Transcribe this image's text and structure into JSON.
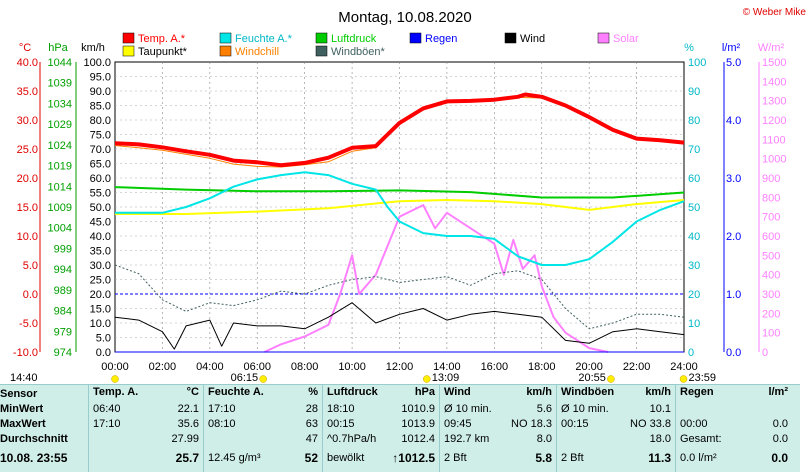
{
  "title": "Montag, 10.08.2020",
  "copyright": "© Weber Mike",
  "colors": {
    "temp": "#ff0000",
    "humidity": "#00e5e5",
    "pressure": "#00cc00",
    "rain": "#0000ff",
    "wind": "#000000",
    "solar": "#ff80ff",
    "dewpoint": "#ffff00",
    "windchill": "#ff8000",
    "gust": "#406060"
  },
  "legend": [
    {
      "label": "Temp. A.*",
      "color": "#ff0000"
    },
    {
      "label": "Feuchte A.*",
      "color": "#00e5e5"
    },
    {
      "label": "Luftdruck",
      "color": "#00cc00"
    },
    {
      "label": "Regen",
      "color": "#0000ff"
    },
    {
      "label": "Wind",
      "color": "#000000"
    },
    {
      "label": "Solar",
      "color": "#ff80ff"
    },
    {
      "label": "Taupunkt*",
      "color": "#ffff00"
    },
    {
      "label": "Windchill",
      "color": "#ff8000"
    },
    {
      "label": "Windböen*",
      "color": "#406060"
    }
  ],
  "axis_units": {
    "temp": "°C",
    "pressure": "hPa",
    "wind": "km/h",
    "humidity": "%",
    "rain": "l/m²",
    "solar": "W/m²"
  },
  "chart_data": {
    "type": "line",
    "x_ticks": [
      "00:00",
      "02:00",
      "04:00",
      "06:00",
      "08:00",
      "10:00",
      "12:00",
      "14:00",
      "16:00",
      "18:00",
      "20:00",
      "22:00",
      "24:00"
    ],
    "x_hours": [
      0,
      24
    ],
    "axes": {
      "temp": {
        "ticks": [
          "40.0",
          "35.0",
          "30.0",
          "25.0",
          "20.0",
          "15.0",
          "10.0",
          "5.0",
          "0.0",
          "-5.0",
          "-10.0"
        ],
        "range": [
          -10,
          40
        ]
      },
      "pressure": {
        "ticks": [
          "1044",
          "1039",
          "1034",
          "1029",
          "1024",
          "1019",
          "1014",
          "1009",
          "1004",
          "999",
          "994",
          "989",
          "984",
          "979",
          "974"
        ],
        "range": [
          974,
          1044
        ]
      },
      "wind": {
        "ticks": [
          "100.0",
          "95.0",
          "90.0",
          "85.0",
          "80.0",
          "75.0",
          "70.0",
          "65.0",
          "60.0",
          "55.0",
          "50.0",
          "45.0",
          "40.0",
          "35.0",
          "30.0",
          "25.0",
          "20.0",
          "15.0",
          "10.0",
          "5.0",
          "0.0"
        ],
        "range": [
          0,
          100
        ]
      },
      "humidity": {
        "ticks": [
          "100",
          "90",
          "80",
          "70",
          "60",
          "50",
          "40",
          "30",
          "20",
          "10",
          "0"
        ],
        "range": [
          0,
          100
        ]
      },
      "rain": {
        "ticks": [
          "5.0",
          "4.0",
          "3.0",
          "2.0",
          "1.0",
          "0.0"
        ],
        "range": [
          0,
          5
        ]
      },
      "solar": {
        "ticks": [
          "1500",
          "1400",
          "1300",
          "1200",
          "1100",
          "1000",
          "900",
          "800",
          "700",
          "600",
          "500",
          "400",
          "300",
          "200",
          "100",
          "0"
        ],
        "range": [
          0,
          1500
        ]
      }
    },
    "series": [
      {
        "name": "Temp. A.*",
        "axis": "temp",
        "color": "#ff0000",
        "width": 4,
        "points": [
          [
            0,
            26
          ],
          [
            1,
            25.8
          ],
          [
            2,
            25.3
          ],
          [
            3,
            24.6
          ],
          [
            4,
            24
          ],
          [
            5,
            23
          ],
          [
            6,
            22.7
          ],
          [
            7,
            22.2
          ],
          [
            8,
            22.6
          ],
          [
            9,
            23.5
          ],
          [
            10,
            25.2
          ],
          [
            11,
            25.5
          ],
          [
            11.5,
            27.5
          ],
          [
            12,
            29.5
          ],
          [
            13,
            32
          ],
          [
            14,
            33.2
          ],
          [
            15,
            33.3
          ],
          [
            16,
            33.5
          ],
          [
            17,
            34
          ],
          [
            17.3,
            34.4
          ],
          [
            18,
            34
          ],
          [
            19,
            32.5
          ],
          [
            20,
            30.5
          ],
          [
            21,
            28.3
          ],
          [
            22,
            26.8
          ],
          [
            23,
            26.5
          ],
          [
            24,
            26.1
          ]
        ]
      },
      {
        "name": "Windchill",
        "axis": "temp",
        "color": "#ff8000",
        "width": 1,
        "points": [
          [
            0,
            25.6
          ],
          [
            1,
            25.2
          ],
          [
            2,
            24.8
          ],
          [
            3,
            24.1
          ],
          [
            4,
            23.4
          ],
          [
            5,
            22.4
          ],
          [
            6,
            22
          ],
          [
            7,
            21.9
          ],
          [
            8,
            22.3
          ],
          [
            9,
            22.8
          ],
          [
            10,
            24.6
          ],
          [
            11,
            25.2
          ],
          [
            12,
            29.2
          ],
          [
            13,
            31.8
          ],
          [
            14,
            33
          ],
          [
            15,
            33.2
          ],
          [
            16,
            33.4
          ],
          [
            17,
            33.9
          ],
          [
            18,
            33.8
          ],
          [
            19,
            32.3
          ],
          [
            20,
            30.3
          ],
          [
            21,
            28.1
          ],
          [
            22,
            26.7
          ],
          [
            23,
            26.4
          ],
          [
            24,
            26
          ]
        ]
      },
      {
        "name": "Feuchte A.*",
        "axis": "humidity",
        "color": "#00e5e5",
        "width": 2,
        "points": [
          [
            0,
            48
          ],
          [
            2,
            48
          ],
          [
            3,
            50
          ],
          [
            4,
            53
          ],
          [
            5,
            57
          ],
          [
            6,
            59.5
          ],
          [
            7,
            61
          ],
          [
            8,
            62
          ],
          [
            9,
            61
          ],
          [
            10,
            58
          ],
          [
            11,
            56
          ],
          [
            11.5,
            50
          ],
          [
            12,
            45
          ],
          [
            13,
            41
          ],
          [
            14,
            40
          ],
          [
            15,
            40
          ],
          [
            16,
            39
          ],
          [
            17,
            33
          ],
          [
            18,
            30
          ],
          [
            19,
            30
          ],
          [
            20,
            32
          ],
          [
            21,
            38
          ],
          [
            22,
            45
          ],
          [
            23,
            49
          ],
          [
            24,
            52
          ]
        ]
      },
      {
        "name": "Luftdruck",
        "axis": "pressure",
        "color": "#00cc00",
        "width": 2,
        "points": [
          [
            0,
            1013.8
          ],
          [
            3,
            1013.2
          ],
          [
            6,
            1012.8
          ],
          [
            9,
            1012.8
          ],
          [
            12,
            1013
          ],
          [
            15,
            1012.6
          ],
          [
            18,
            1011.3
          ],
          [
            21,
            1011.3
          ],
          [
            24,
            1012.5
          ]
        ]
      },
      {
        "name": "Taupunkt*",
        "axis": "temp",
        "color": "#ffff00",
        "width": 2,
        "points": [
          [
            0,
            13.8
          ],
          [
            3,
            13.8
          ],
          [
            6,
            14.2
          ],
          [
            9,
            14.8
          ],
          [
            12,
            16
          ],
          [
            14,
            16.2
          ],
          [
            16,
            16
          ],
          [
            18,
            15.5
          ],
          [
            20,
            14.5
          ],
          [
            22,
            15.5
          ],
          [
            24,
            16.2
          ]
        ]
      },
      {
        "name": "Solar",
        "axis": "solar",
        "color": "#ff80ff",
        "width": 2,
        "points": [
          [
            6.3,
            0
          ],
          [
            7,
            40
          ],
          [
            8,
            80
          ],
          [
            9,
            140
          ],
          [
            9.5,
            300
          ],
          [
            10,
            500
          ],
          [
            10.3,
            300
          ],
          [
            11,
            400
          ],
          [
            12,
            700
          ],
          [
            13,
            760
          ],
          [
            13.5,
            640
          ],
          [
            14,
            720
          ],
          [
            15,
            640
          ],
          [
            16,
            560
          ],
          [
            16.4,
            400
          ],
          [
            16.8,
            580
          ],
          [
            17.2,
            430
          ],
          [
            17.7,
            500
          ],
          [
            18,
            340
          ],
          [
            18.5,
            180
          ],
          [
            19,
            100
          ],
          [
            20,
            20
          ],
          [
            20.8,
            0
          ]
        ]
      },
      {
        "name": "Wind",
        "axis": "wind",
        "color": "#000000",
        "width": 1,
        "points": [
          [
            0,
            12
          ],
          [
            1,
            11
          ],
          [
            2,
            7
          ],
          [
            2.5,
            1
          ],
          [
            3,
            9
          ],
          [
            4,
            11
          ],
          [
            4.5,
            2
          ],
          [
            5,
            10
          ],
          [
            6,
            9
          ],
          [
            7,
            9
          ],
          [
            8,
            8
          ],
          [
            9,
            12
          ],
          [
            10,
            17
          ],
          [
            11,
            10
          ],
          [
            12,
            13
          ],
          [
            13,
            15
          ],
          [
            14,
            11
          ],
          [
            15,
            13
          ],
          [
            16,
            14
          ],
          [
            17,
            13
          ],
          [
            18,
            12
          ],
          [
            19,
            4
          ],
          [
            20,
            3
          ],
          [
            21,
            7
          ],
          [
            22,
            8
          ],
          [
            23,
            7
          ],
          [
            24,
            6
          ]
        ]
      },
      {
        "name": "Windböen*",
        "axis": "wind",
        "color": "#406060",
        "width": 1,
        "dashed": true,
        "points": [
          [
            0,
            30
          ],
          [
            1,
            27
          ],
          [
            2,
            18
          ],
          [
            3,
            14
          ],
          [
            4,
            17
          ],
          [
            5,
            16
          ],
          [
            6,
            18
          ],
          [
            7,
            21
          ],
          [
            8,
            20
          ],
          [
            9,
            23
          ],
          [
            10,
            25
          ],
          [
            11,
            26
          ],
          [
            12,
            24
          ],
          [
            13,
            25
          ],
          [
            14,
            26
          ],
          [
            15,
            23
          ],
          [
            16,
            27
          ],
          [
            17,
            28
          ],
          [
            18,
            25
          ],
          [
            19,
            15
          ],
          [
            20,
            8
          ],
          [
            21,
            10
          ],
          [
            22,
            13
          ],
          [
            23,
            13
          ],
          [
            24,
            12
          ]
        ]
      },
      {
        "name": "Regen",
        "axis": "rain",
        "color": "#0000ff",
        "width": 1,
        "points": [
          [
            0,
            0
          ],
          [
            24,
            0
          ]
        ]
      }
    ],
    "reference_lines": [
      {
        "axis": "rain",
        "value": 1.0,
        "color": "#0000ff",
        "dashed": true
      }
    ],
    "sun_markers": [
      {
        "label": "14:40",
        "hour": 0
      },
      {
        "label": "06:15",
        "hour": 6.25
      },
      {
        "label": "13:09",
        "hour": 13.15
      },
      {
        "label": "20:55",
        "hour": 20.917
      },
      {
        "label": "23:59",
        "hour": 23.98
      }
    ]
  },
  "stats": {
    "sensor": {
      "header": "Sensor",
      "rows": [
        "MinWert",
        "MaxWert",
        "Durchschnitt",
        "10.08.  23:55"
      ]
    },
    "temp": {
      "header": "Temp. A.",
      "unit": "°C",
      "rows": [
        [
          "06:40",
          "22.1"
        ],
        [
          "17:10",
          "35.6"
        ],
        [
          "",
          "27.99"
        ],
        [
          "",
          "25.7"
        ]
      ]
    },
    "humidity": {
      "header": "Feuchte A.",
      "unit": "%",
      "rows": [
        [
          "17:10",
          "28"
        ],
        [
          "08:10",
          "63"
        ],
        [
          "",
          "47"
        ],
        [
          "12.45 g/m³",
          "52"
        ]
      ]
    },
    "pressure": {
      "header": "Luftdruck",
      "unit": "hPa",
      "rows": [
        [
          "18:10",
          "1010.9"
        ],
        [
          "00:15",
          "1013.9"
        ],
        [
          "^0.7hPa/h",
          "1012.4"
        ],
        [
          "bewölkt",
          "↑1012.5"
        ]
      ]
    },
    "wind": {
      "header": "Wind",
      "unit": "km/h",
      "rows": [
        [
          "Ø 10 min.",
          "",
          "5.6"
        ],
        [
          "09:45",
          "NO 18.3",
          ""
        ],
        [
          "192.7 km",
          "",
          "8.0"
        ],
        [
          "2 Bft",
          "",
          "5.8"
        ]
      ]
    },
    "gust": {
      "header": "Windböen",
      "unit": "km/h",
      "rows": [
        [
          "Ø 10 min.",
          "",
          "10.1"
        ],
        [
          "00:15",
          "NO 33.8",
          ""
        ],
        [
          "",
          "",
          "18.0"
        ],
        [
          "2 Bft",
          "",
          "11.3"
        ]
      ]
    },
    "rain": {
      "header": "Regen",
      "unit": "l/m²",
      "rows": [
        [
          "",
          ""
        ],
        [
          "00:00",
          "0.0"
        ],
        [
          "Gesamt:",
          "0.0"
        ],
        [
          "0.0 l/m²",
          "0.0"
        ]
      ]
    }
  }
}
